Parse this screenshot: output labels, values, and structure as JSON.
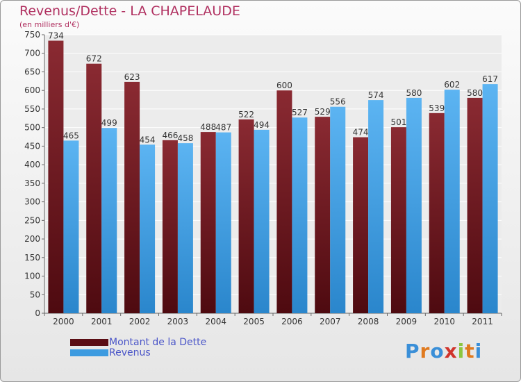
{
  "header": {
    "title": "Revenus/Dette - LA CHAPELAUDE",
    "units": "(en milliers d'€)"
  },
  "legend": {
    "debt_label": "Montant de la Dette",
    "revenue_label": "Revenus"
  },
  "brand": {
    "name": "Proxiti"
  },
  "colors": {
    "debt": "#7a1e26",
    "debt_dark": "#4e0a10",
    "revenue": "#55aef0",
    "revenue_dark": "#2a86cc",
    "title": "#b03060"
  },
  "chart_data": {
    "type": "bar",
    "title": "Revenus/Dette - LA CHAPELAUDE",
    "ylabel": "(en milliers d'€)",
    "xlabel": "",
    "categories": [
      "2000",
      "2001",
      "2002",
      "2003",
      "2004",
      "2005",
      "2006",
      "2007",
      "2008",
      "2009",
      "2010",
      "2011"
    ],
    "series": [
      {
        "name": "Montant de la Dette",
        "values": [
          734,
          672,
          623,
          466,
          488,
          522,
          600,
          529,
          474,
          501,
          539,
          580
        ]
      },
      {
        "name": "Revenus",
        "values": [
          465,
          499,
          454,
          458,
          487,
          494,
          527,
          556,
          574,
          580,
          602,
          617
        ]
      }
    ],
    "ylim": [
      0,
      750
    ],
    "yticks": [
      0,
      50,
      100,
      150,
      200,
      250,
      300,
      350,
      400,
      450,
      500,
      550,
      600,
      650,
      700,
      750
    ],
    "grid": true,
    "legend_position": "bottom-left"
  }
}
